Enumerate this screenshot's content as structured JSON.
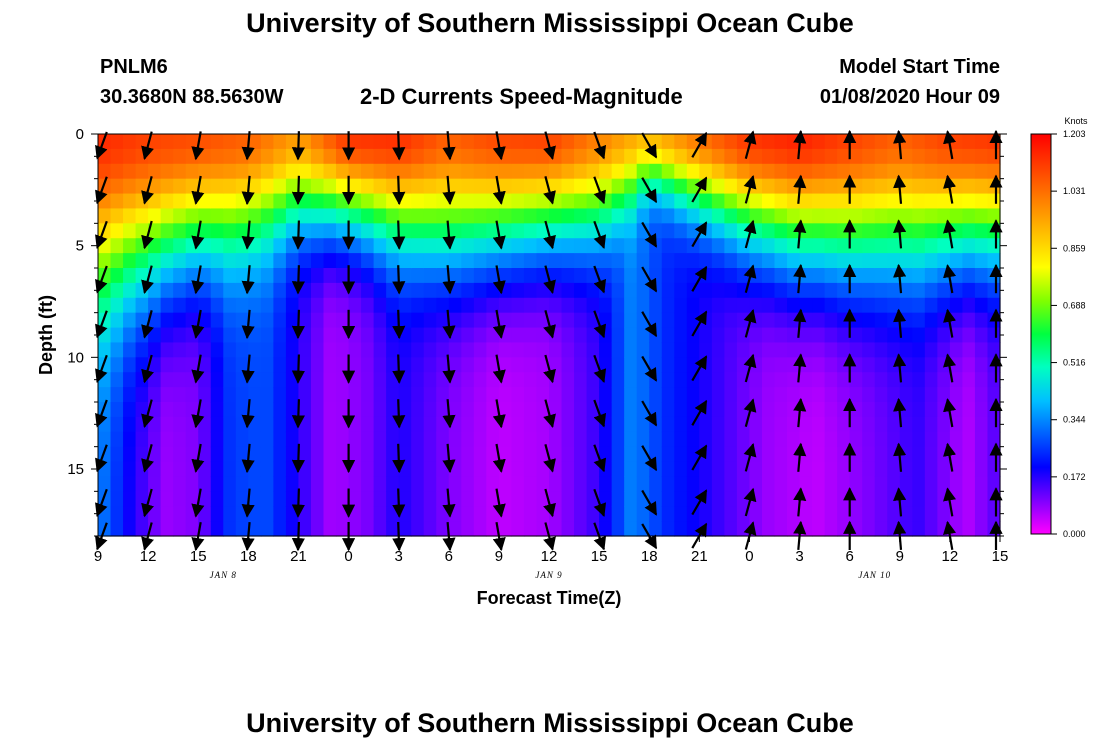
{
  "header": {
    "title": "University of Southern Mississippi Ocean Cube",
    "station_id": "PNLM6",
    "coords": "30.3680N 88.5630W",
    "plot_title": "2-D Currents Speed-Magnitude",
    "model_label": "Model Start Time",
    "model_date": "01/08/2020 Hour 09"
  },
  "footer": {
    "title": "University of Southern Mississippi Ocean Cube"
  },
  "chart_data": {
    "type": "heatmap",
    "title": "2-D Currents Speed-Magnitude",
    "xlabel": "Forecast Time(Z)",
    "ylabel": "Depth (ft)",
    "x_hours": [
      0,
      54
    ],
    "y_range": [
      0,
      18
    ],
    "x_tick_labels": [
      "9",
      "12",
      "15",
      "18",
      "21",
      "0",
      "3",
      "6",
      "9",
      "12",
      "15",
      "18",
      "21",
      "0",
      "3",
      "6",
      "9",
      "12",
      "15"
    ],
    "y_ticks": [
      0,
      5,
      10,
      15
    ],
    "day_labels": [
      {
        "text": "JAN  8",
        "hour": 7.5
      },
      {
        "text": "JAN  9",
        "hour": 27
      },
      {
        "text": "JAN  10",
        "hour": 46.5
      }
    ],
    "colorbar": {
      "unit": "Knots",
      "min": 0.0,
      "max": 1.203,
      "tick_labels": [
        "1.203",
        "1.031",
        "0.859",
        "0.688",
        "0.516",
        "0.344",
        "0.172",
        "0.000"
      ],
      "colors": [
        "#ff00ff",
        "#7f00ff",
        "#0000ff",
        "#0060ff",
        "#00c0ff",
        "#00ffc0",
        "#00ff40",
        "#80ff00",
        "#ffff00",
        "#ffc000",
        "#ff8000",
        "#ff4000",
        "#ff0000"
      ]
    },
    "surface_speed_by_hour": [
      [
        0,
        1.14
      ],
      [
        3,
        1.1
      ],
      [
        6,
        1.08
      ],
      [
        9,
        1.05
      ],
      [
        12,
        0.95
      ],
      [
        15,
        1.12
      ],
      [
        18,
        1.13
      ],
      [
        21,
        1.05
      ],
      [
        24,
        1.09
      ],
      [
        27,
        1.1
      ],
      [
        30,
        1.0
      ],
      [
        33,
        0.9
      ],
      [
        36,
        1.02
      ],
      [
        39,
        1.12
      ],
      [
        42,
        1.15
      ],
      [
        45,
        1.1
      ],
      [
        48,
        1.05
      ],
      [
        51,
        1.1
      ],
      [
        54,
        1.12
      ]
    ],
    "decay_depth_ft_by_hour": [
      [
        0,
        6.8
      ],
      [
        3,
        6.2
      ],
      [
        6,
        5.2
      ],
      [
        9,
        4.6
      ],
      [
        12,
        3.8
      ],
      [
        15,
        4.0
      ],
      [
        18,
        4.6
      ],
      [
        21,
        5.2
      ],
      [
        24,
        5.0
      ],
      [
        27,
        4.6
      ],
      [
        30,
        4.3
      ],
      [
        33,
        2.2
      ],
      [
        36,
        3.4
      ],
      [
        39,
        4.6
      ],
      [
        42,
        5.4
      ],
      [
        45,
        5.6
      ],
      [
        48,
        5.4
      ],
      [
        51,
        5.2
      ],
      [
        54,
        5.0
      ]
    ],
    "deep_speed_by_hour": [
      [
        0,
        0.34
      ],
      [
        2,
        0.18
      ],
      [
        4,
        0.08
      ],
      [
        6,
        0.1
      ],
      [
        8,
        0.26
      ],
      [
        10,
        0.28
      ],
      [
        12,
        0.17
      ],
      [
        14,
        0.07
      ],
      [
        16,
        0.1
      ],
      [
        18,
        0.18
      ],
      [
        21,
        0.1
      ],
      [
        24,
        0.05
      ],
      [
        27,
        0.07
      ],
      [
        30,
        0.16
      ],
      [
        32,
        0.34
      ],
      [
        34,
        0.24
      ],
      [
        37,
        0.16
      ],
      [
        40,
        0.08
      ],
      [
        43,
        0.05
      ],
      [
        46,
        0.1
      ],
      [
        49,
        0.16
      ],
      [
        52,
        0.06
      ],
      [
        54,
        0.14
      ]
    ],
    "vector_hours": [
      0,
      3,
      6,
      9,
      12,
      15,
      18,
      21,
      24,
      27,
      30,
      33,
      36,
      39,
      42,
      45,
      48,
      51,
      54
    ],
    "vector_depths_ft": [
      0.5,
      2.5,
      4.5,
      6.5,
      8.5,
      10.5,
      12.5,
      14.5,
      16.5,
      18
    ],
    "vector_direction_deg_by_hour": [
      [
        0,
        200
      ],
      [
        3,
        195
      ],
      [
        6,
        190
      ],
      [
        9,
        185
      ],
      [
        12,
        182
      ],
      [
        15,
        180
      ],
      [
        18,
        178
      ],
      [
        21,
        175
      ],
      [
        24,
        170
      ],
      [
        27,
        165
      ],
      [
        30,
        160
      ],
      [
        33,
        150
      ],
      [
        36,
        30
      ],
      [
        39,
        15
      ],
      [
        42,
        5
      ],
      [
        45,
        0
      ],
      [
        48,
        355
      ],
      [
        51,
        350
      ],
      [
        54,
        0
      ]
    ]
  }
}
